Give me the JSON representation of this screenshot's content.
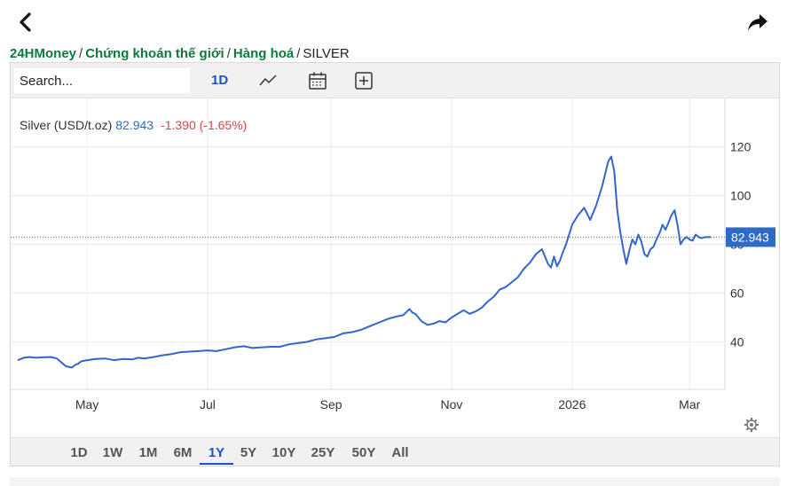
{
  "breadcrumb": {
    "items": [
      "24HMoney",
      "Chứng khoán thế giới",
      "Hàng hoá"
    ],
    "current": "SILVER"
  },
  "toolbar": {
    "search_placeholder": "Search...",
    "interval_label": "1D"
  },
  "legend": {
    "name": "Silver (USD/t.oz)",
    "value": "82.943",
    "change": "-1.390 (-1.65%)"
  },
  "colors": {
    "line": "#3366cc",
    "price_tag": "#2e6bc6",
    "negative": "#d64545",
    "active": "#1f4fd1"
  },
  "icons": [
    "chevron-left-icon",
    "share-arrow-icon",
    "line-chart-icon",
    "calendar-icon",
    "plus-box-icon",
    "gear-icon"
  ],
  "range_buttons": [
    "1D",
    "1W",
    "1M",
    "6M",
    "1Y",
    "5Y",
    "10Y",
    "25Y",
    "50Y",
    "All"
  ],
  "range_active": "1Y",
  "chart_data": {
    "type": "line",
    "title": "",
    "xlabel": "",
    "ylabel": "",
    "last_value_label": "82.943",
    "x_ticks": [
      {
        "label": "May",
        "t": 1.15
      },
      {
        "label": "Jul",
        "t": 3.15
      },
      {
        "label": "Sep",
        "t": 5.2
      },
      {
        "label": "Nov",
        "t": 7.2
      },
      {
        "label": "2026",
        "t": 9.2
      },
      {
        "label": "Mar",
        "t": 11.15
      }
    ],
    "y_ticks": [
      40,
      60,
      80,
      100,
      120
    ],
    "xlim": [
      0,
      11.5
    ],
    "ylim": [
      20,
      140
    ],
    "grid": true,
    "last_value": 82.943,
    "series": [
      {
        "x": [
          0,
          0.1,
          0.2,
          0.3,
          0.45,
          0.55,
          0.65,
          0.8,
          0.9,
          0.95,
          1.0,
          1.05,
          1.15,
          1.3,
          1.45,
          1.6,
          1.75,
          1.9,
          2.0,
          2.1,
          2.25,
          2.4,
          2.55,
          2.7,
          2.85,
          3.0,
          3.15,
          3.3,
          3.45,
          3.6,
          3.75,
          3.9,
          4.05,
          4.2,
          4.35,
          4.5,
          4.65,
          4.8,
          4.95,
          5.1,
          5.25,
          5.4,
          5.55,
          5.7,
          5.85,
          6.0,
          6.15,
          6.3,
          6.4,
          6.5,
          6.55,
          6.6,
          6.7,
          6.8,
          6.9,
          7.0,
          7.1,
          7.2,
          7.3,
          7.4,
          7.5,
          7.6,
          7.7,
          7.8,
          7.9,
          8.0,
          8.1,
          8.2,
          8.3,
          8.4,
          8.5,
          8.6,
          8.7,
          8.8,
          8.85,
          8.9,
          8.95,
          9.0,
          9.05,
          9.1,
          9.15,
          9.2,
          9.3,
          9.4,
          9.5,
          9.6,
          9.7,
          9.8,
          9.85,
          9.9,
          9.95,
          10.0,
          10.05,
          10.1,
          10.15,
          10.2,
          10.25,
          10.3,
          10.35,
          10.4,
          10.45,
          10.5,
          10.55,
          10.6,
          10.65,
          10.7,
          10.75,
          10.8,
          10.85,
          10.9,
          10.95,
          11.0,
          11.05,
          11.1,
          11.15,
          11.2,
          11.25,
          11.3,
          11.35,
          11.4,
          11.45,
          11.5
        ],
        "values": [
          32.5,
          33.5,
          33.8,
          33.5,
          33.7,
          33.8,
          33.2,
          30.0,
          29.5,
          30.5,
          31.0,
          32.0,
          32.5,
          33.0,
          33.2,
          32.5,
          33.0,
          32.8,
          33.5,
          33.2,
          33.8,
          34.5,
          35.0,
          35.8,
          36.0,
          36.2,
          36.5,
          36.2,
          37.0,
          37.8,
          38.2,
          37.5,
          37.8,
          38.0,
          38.0,
          39.0,
          39.5,
          40.0,
          41.0,
          41.5,
          42.0,
          43.5,
          44.0,
          45.0,
          46.5,
          48.0,
          49.5,
          50.5,
          51.0,
          53.5,
          52.0,
          51.5,
          48.5,
          47.0,
          47.5,
          48.5,
          48.0,
          50.0,
          51.5,
          53.0,
          51.5,
          52.5,
          54.0,
          56.5,
          58.5,
          61.5,
          62.5,
          64.5,
          66.5,
          70.0,
          72.5,
          76.0,
          78.0,
          72.0,
          70.5,
          75.0,
          71.0,
          73.5,
          77.0,
          80.0,
          84.0,
          88.0,
          92.0,
          95.0,
          90.0,
          96.0,
          104.0,
          114.0,
          116.0,
          110.0,
          94.0,
          85.0,
          78.0,
          72.0,
          77.5,
          82.0,
          80.0,
          84.0,
          81.0,
          76.0,
          75.0,
          78.0,
          79.0,
          82.0,
          84.5,
          88.0,
          86.0,
          89.0,
          92.0,
          94.0,
          88.0,
          80.0,
          82.0,
          83.0,
          82.0,
          81.5,
          84.0,
          83.0,
          82.5,
          82.943,
          82.943,
          82.943
        ]
      }
    ]
  }
}
